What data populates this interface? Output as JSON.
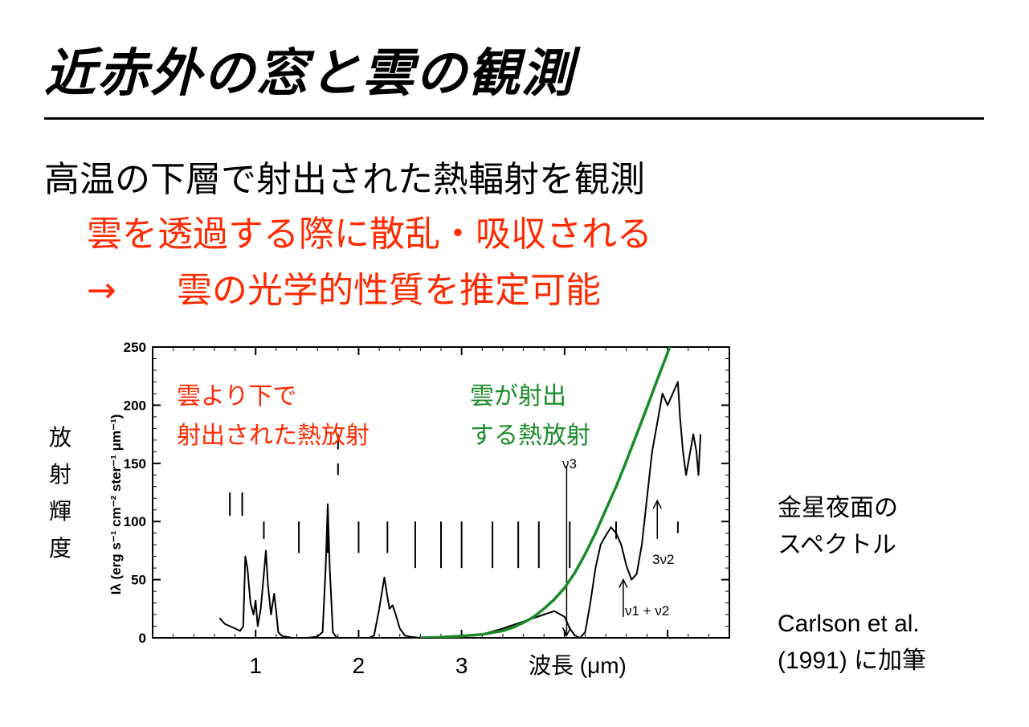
{
  "slide": {
    "title": "近赤外の窓と雲の観測",
    "line1": "高温の下層で射出された熱輻射を観測",
    "line2": "雲を透過する際に散乱・吸収される",
    "line3_arrow": "→",
    "line3_text": "雲の光学的性質を推定可能",
    "side_label": [
      "金星夜面の",
      "スペクトル"
    ],
    "citation": [
      "Carlson et al.",
      "(1991) に加筆"
    ],
    "ylabel_vertical": [
      "放",
      "射",
      "輝",
      "度"
    ]
  },
  "colors": {
    "accent_red": "#ff2a00",
    "accent_green": "#1a8a2a",
    "spectrum": "#000000"
  },
  "chart_data": {
    "type": "line",
    "ylabel": "Iλ (erg s⁻¹ cm⁻² ster⁻¹ μm⁻¹)",
    "xlabel": "波長 (μm)",
    "ylim": [
      0,
      250
    ],
    "xlim": [
      0,
      5.6
    ],
    "y_ticks": [
      0,
      50,
      100,
      150,
      200,
      250
    ],
    "x_ticks": [
      1,
      2,
      3
    ],
    "annotations": {
      "red_text": [
        "雲より下で",
        "射出された熱放射"
      ],
      "green_text": [
        "雲が射出",
        "する熱放射"
      ],
      "nu3": "ν3",
      "nu1nu2": "ν1 + ν2",
      "three_nu2": "3ν2"
    },
    "series": [
      {
        "key": "spectrum",
        "x": [
          0.65,
          0.7,
          0.75,
          0.8,
          0.85,
          0.88,
          0.9,
          0.92,
          0.95,
          0.98,
          1.0,
          1.02,
          1.05,
          1.08,
          1.1,
          1.12,
          1.15,
          1.18,
          1.2,
          1.22,
          1.25,
          1.28,
          1.3,
          1.35,
          1.4,
          1.5,
          1.6,
          1.65,
          1.68,
          1.7,
          1.72,
          1.75,
          1.78,
          1.8,
          1.9,
          2.0,
          2.1,
          2.15,
          2.2,
          2.25,
          2.28,
          2.3,
          2.33,
          2.36,
          2.4,
          2.45,
          2.5,
          2.6,
          2.8,
          3.0,
          3.2,
          3.4,
          3.6,
          3.8,
          3.9,
          4.0,
          4.05,
          4.1,
          4.15,
          4.2,
          4.25,
          4.3,
          4.35,
          4.4,
          4.45,
          4.5,
          4.55,
          4.6,
          4.65,
          4.7,
          4.75,
          4.8,
          4.85,
          4.9,
          4.95,
          5.0,
          5.05,
          5.1,
          5.12,
          5.15,
          5.18,
          5.2,
          5.25,
          5.28,
          5.3,
          5.32
        ],
        "y": [
          17,
          12,
          10,
          8,
          6,
          10,
          70,
          60,
          30,
          20,
          32,
          10,
          25,
          55,
          75,
          45,
          20,
          38,
          22,
          5,
          2,
          1,
          1,
          0,
          0,
          0,
          1,
          5,
          60,
          115,
          60,
          5,
          1,
          0,
          0,
          0,
          0,
          2,
          25,
          52,
          35,
          25,
          28,
          20,
          8,
          2,
          1,
          0,
          0,
          1,
          3,
          8,
          14,
          20,
          23,
          18,
          8,
          2,
          0,
          5,
          30,
          60,
          80,
          88,
          95,
          90,
          80,
          62,
          50,
          55,
          80,
          120,
          160,
          185,
          210,
          200,
          210,
          220,
          190,
          160,
          140,
          150,
          175,
          160,
          140,
          175
        ]
      },
      {
        "key": "green",
        "x": [
          2.6,
          2.8,
          3.0,
          3.2,
          3.4,
          3.5,
          3.6,
          3.7,
          3.8,
          3.9,
          4.0,
          4.1,
          4.2,
          4.3,
          4.4,
          4.5,
          4.6,
          4.7,
          4.8,
          4.9,
          5.0,
          5.05
        ],
        "y": [
          0,
          0.5,
          1.5,
          3,
          6,
          9,
          13,
          18,
          25,
          33,
          43,
          56,
          72,
          90,
          110,
          130,
          152,
          175,
          198,
          222,
          245,
          258
        ]
      }
    ]
  }
}
